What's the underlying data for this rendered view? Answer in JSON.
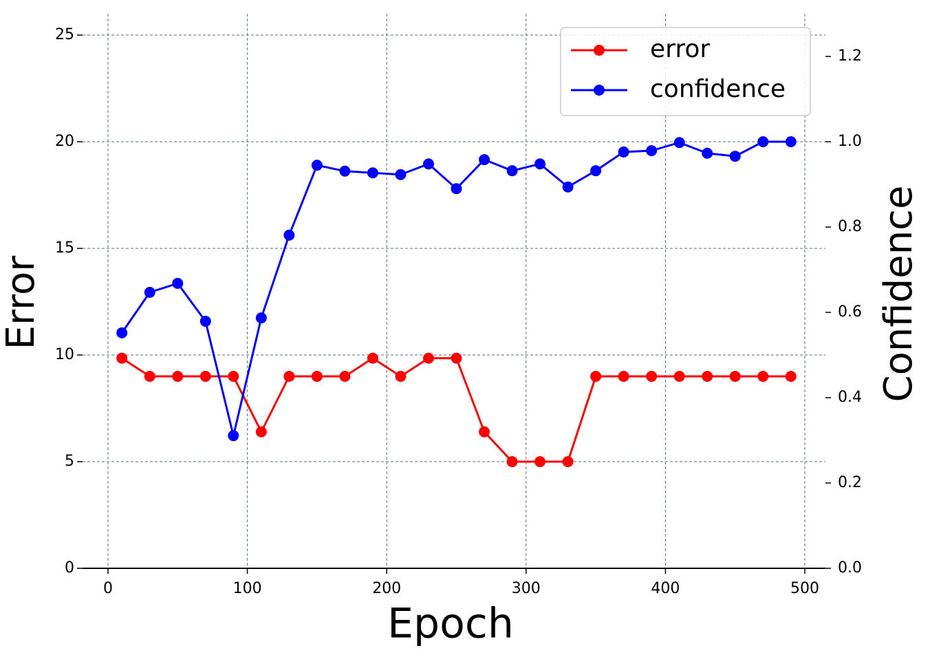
{
  "chart_data": {
    "type": "line",
    "xlabel": "Epoch",
    "ylabel": "Error",
    "y2label": "Confidence",
    "x": [
      10,
      30,
      50,
      70,
      90,
      110,
      130,
      150,
      170,
      190,
      210,
      230,
      250,
      270,
      290,
      310,
      330,
      350,
      370,
      390,
      410,
      430,
      450,
      470,
      490
    ],
    "series": [
      {
        "name": "error",
        "color": "#ff0000",
        "axis": "y",
        "values": [
          9.85,
          9,
          9,
          9,
          9,
          6.4,
          9,
          9,
          9,
          9.85,
          9,
          9.85,
          9.85,
          6.4,
          5,
          5,
          5,
          9,
          9,
          9,
          9,
          9,
          9,
          9,
          9
        ]
      },
      {
        "name": "confidence",
        "color": "#0000ff",
        "axis": "y2",
        "values": [
          0.552,
          0.647,
          0.668,
          0.579,
          0.311,
          0.587,
          0.781,
          0.945,
          0.931,
          0.927,
          0.923,
          0.948,
          0.89,
          0.958,
          0.932,
          0.948,
          0.894,
          0.932,
          0.976,
          0.979,
          0.998,
          0.973,
          0.966,
          1.0,
          1.0
        ]
      }
    ],
    "xlim": [
      -14,
      514
    ],
    "xticks": [
      0,
      100,
      200,
      300,
      400,
      500
    ],
    "ylim": [
      0,
      25.4
    ],
    "yticks": [
      0,
      5,
      10,
      15,
      20,
      25
    ],
    "y2lim": [
      0,
      1.27
    ],
    "y2ticks": [
      {
        "value": 0,
        "label": "0.0"
      },
      0.2,
      0.4,
      0.6,
      0.8,
      {
        "value": 1,
        "label": "1.0"
      },
      1.2
    ],
    "grid": true,
    "legend": "upper right"
  }
}
